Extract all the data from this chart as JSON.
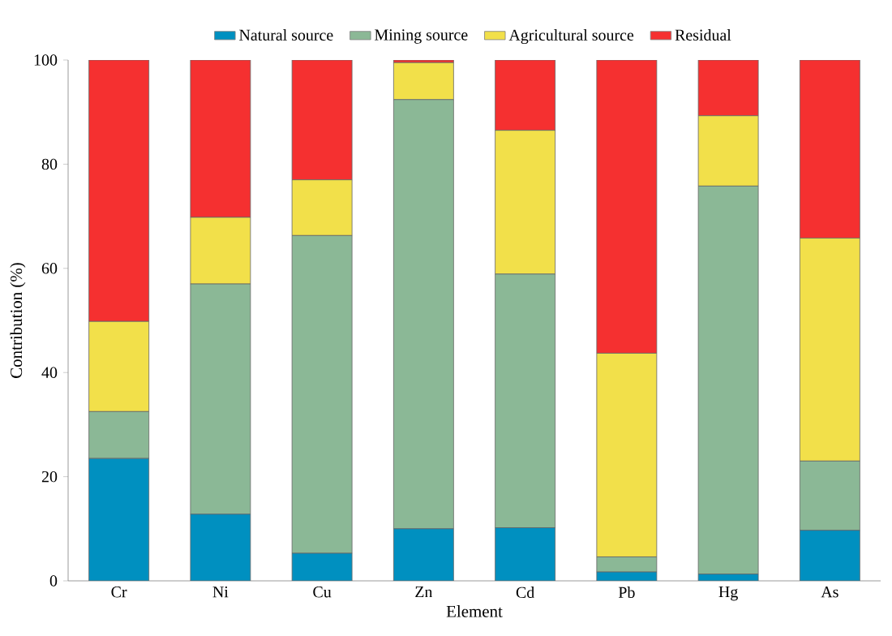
{
  "chart_data": {
    "type": "bar",
    "stacked": true,
    "xlabel": "Element",
    "ylabel": "Contribution (%)",
    "categories": [
      "Cr",
      "Ni",
      "Cu",
      "Zn",
      "Cd",
      "Pb",
      "Hg",
      "As"
    ],
    "series": [
      {
        "name": "Natural source",
        "color": "#0090c0",
        "values": [
          23.5,
          12.8,
          5.3,
          10,
          10.2,
          1.7,
          1.3,
          9.7
        ]
      },
      {
        "name": "Mining source",
        "color": "#8bb896",
        "values": [
          9,
          44.2,
          61,
          82.4,
          48.7,
          2.9,
          74.5,
          13.3
        ]
      },
      {
        "name": "Agricultural source",
        "color": "#f2e04a",
        "values": [
          17.3,
          12.8,
          10.7,
          7.1,
          27.6,
          39.1,
          13.5,
          42.8
        ]
      },
      {
        "name": "Residual",
        "color": "#f53030",
        "values": [
          50.2,
          30.2,
          23,
          0.5,
          13.5,
          56.3,
          10.7,
          34.2
        ]
      }
    ],
    "ylim": [
      0,
      100
    ],
    "yticks": [
      0,
      20,
      40,
      60,
      80,
      100
    ],
    "legend": "top"
  }
}
